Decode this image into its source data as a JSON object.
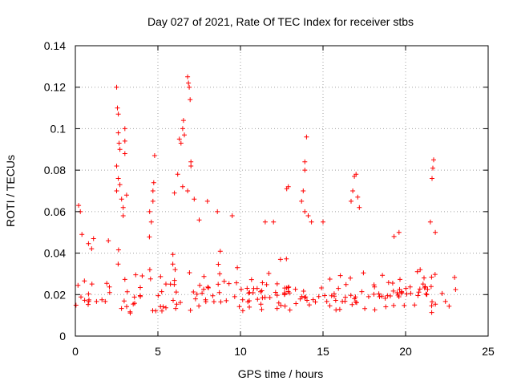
{
  "chart_data": {
    "type": "scatter",
    "title": "Day 027 of 2021, Rate Of TEC Index for receiver stbs",
    "xlabel": "GPS time / hours",
    "ylabel": "ROTI / TECUs",
    "xlim": [
      0,
      25
    ],
    "ylim": [
      0,
      0.14
    ],
    "x_ticks": [
      0,
      5,
      10,
      15,
      20,
      25
    ],
    "x_tick_labels": [
      "0",
      "5",
      "10",
      "15",
      "20",
      "25"
    ],
    "y_ticks": [
      0,
      0.02,
      0.04,
      0.06,
      0.08,
      0.1,
      0.12,
      0.14
    ],
    "y_tick_labels": [
      "0",
      "0.02",
      "0.04",
      "0.06",
      "0.08",
      "0.1",
      "0.12",
      "0.14"
    ],
    "grid": true,
    "marker": "+",
    "marker_color": "#ff0000",
    "series": [
      {
        "name": "ROTI",
        "x_range": [
          0,
          23.1
        ],
        "baseline_band": [
          0.005,
          0.032
        ],
        "notable_points": [
          {
            "x": 0.2,
            "y": 0.063
          },
          {
            "x": 0.3,
            "y": 0.06
          },
          {
            "x": 0.4,
            "y": 0.049
          },
          {
            "x": 1.1,
            "y": 0.047
          },
          {
            "x": 2.0,
            "y": 0.046
          },
          {
            "x": 2.5,
            "y": 0.12
          },
          {
            "x": 2.55,
            "y": 0.11
          },
          {
            "x": 2.6,
            "y": 0.107
          },
          {
            "x": 2.6,
            "y": 0.098
          },
          {
            "x": 2.65,
            "y": 0.093
          },
          {
            "x": 2.7,
            "y": 0.09
          },
          {
            "x": 2.5,
            "y": 0.082
          },
          {
            "x": 2.6,
            "y": 0.076
          },
          {
            "x": 2.7,
            "y": 0.073
          },
          {
            "x": 2.5,
            "y": 0.07
          },
          {
            "x": 2.8,
            "y": 0.066
          },
          {
            "x": 2.9,
            "y": 0.062
          },
          {
            "x": 3.0,
            "y": 0.1
          },
          {
            "x": 3.0,
            "y": 0.094
          },
          {
            "x": 3.0,
            "y": 0.088
          },
          {
            "x": 3.1,
            "y": 0.068
          },
          {
            "x": 2.9,
            "y": 0.058
          },
          {
            "x": 4.5,
            "y": 0.06
          },
          {
            "x": 4.6,
            "y": 0.055
          },
          {
            "x": 4.7,
            "y": 0.065
          },
          {
            "x": 4.75,
            "y": 0.074
          },
          {
            "x": 4.8,
            "y": 0.087
          },
          {
            "x": 4.7,
            "y": 0.07
          },
          {
            "x": 6.0,
            "y": 0.069
          },
          {
            "x": 6.3,
            "y": 0.095
          },
          {
            "x": 6.4,
            "y": 0.093
          },
          {
            "x": 6.5,
            "y": 0.1
          },
          {
            "x": 6.55,
            "y": 0.104
          },
          {
            "x": 6.6,
            "y": 0.097
          },
          {
            "x": 6.8,
            "y": 0.125
          },
          {
            "x": 6.85,
            "y": 0.122
          },
          {
            "x": 6.9,
            "y": 0.12
          },
          {
            "x": 6.95,
            "y": 0.114
          },
          {
            "x": 7.0,
            "y": 0.084
          },
          {
            "x": 7.0,
            "y": 0.082
          },
          {
            "x": 6.2,
            "y": 0.078
          },
          {
            "x": 6.5,
            "y": 0.072
          },
          {
            "x": 6.8,
            "y": 0.07
          },
          {
            "x": 7.2,
            "y": 0.066
          },
          {
            "x": 7.5,
            "y": 0.056
          },
          {
            "x": 8.0,
            "y": 0.065
          },
          {
            "x": 8.6,
            "y": 0.06
          },
          {
            "x": 9.5,
            "y": 0.058
          },
          {
            "x": 11.5,
            "y": 0.055
          },
          {
            "x": 12.0,
            "y": 0.055
          },
          {
            "x": 12.8,
            "y": 0.071
          },
          {
            "x": 12.9,
            "y": 0.072
          },
          {
            "x": 13.7,
            "y": 0.065
          },
          {
            "x": 13.8,
            "y": 0.07
          },
          {
            "x": 13.9,
            "y": 0.06
          },
          {
            "x": 13.9,
            "y": 0.084
          },
          {
            "x": 13.9,
            "y": 0.08
          },
          {
            "x": 14.0,
            "y": 0.096
          },
          {
            "x": 14.1,
            "y": 0.058
          },
          {
            "x": 14.3,
            "y": 0.055
          },
          {
            "x": 15.0,
            "y": 0.055
          },
          {
            "x": 16.7,
            "y": 0.065
          },
          {
            "x": 16.8,
            "y": 0.07
          },
          {
            "x": 16.9,
            "y": 0.077
          },
          {
            "x": 17.0,
            "y": 0.078
          },
          {
            "x": 17.1,
            "y": 0.067
          },
          {
            "x": 17.2,
            "y": 0.062
          },
          {
            "x": 19.3,
            "y": 0.048
          },
          {
            "x": 19.6,
            "y": 0.05
          },
          {
            "x": 21.5,
            "y": 0.055
          },
          {
            "x": 21.6,
            "y": 0.076
          },
          {
            "x": 21.65,
            "y": 0.081
          },
          {
            "x": 21.7,
            "y": 0.085
          },
          {
            "x": 21.8,
            "y": 0.05
          }
        ]
      }
    ]
  }
}
